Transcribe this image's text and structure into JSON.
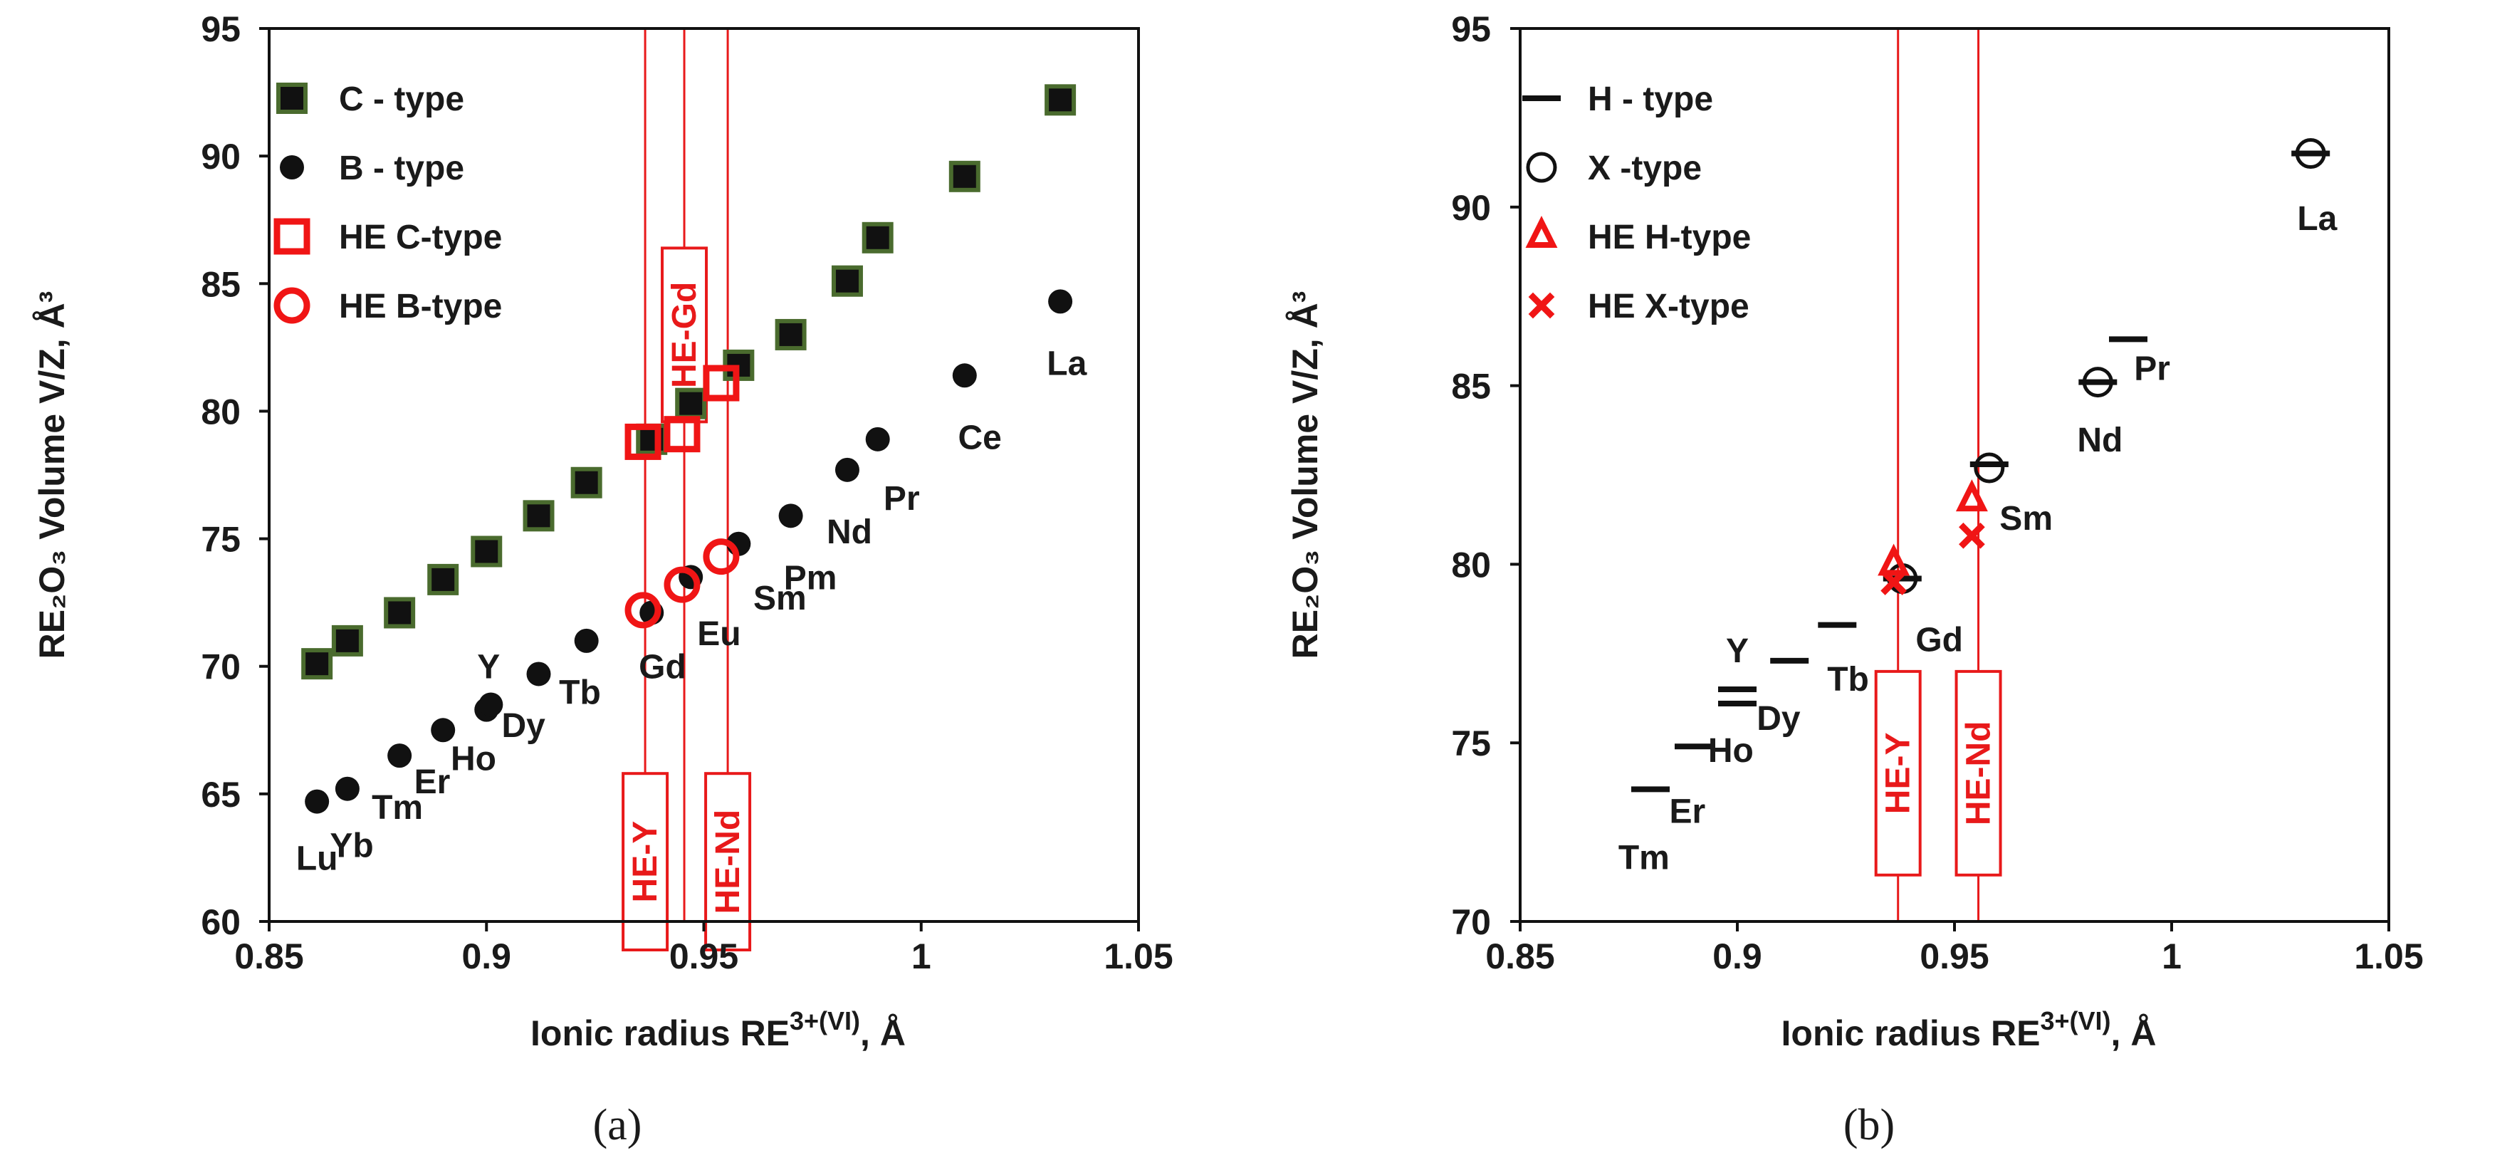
{
  "colors": {
    "c_type_fill": "#111111",
    "c_type_edge": "#4a6b2e",
    "b_type": "#111111",
    "he": "#f01515",
    "ref_line": "#e8191a"
  },
  "chart_data": [
    {
      "type": "scatter",
      "panel_label": "(a)",
      "xlabel": "Ionic radius RE",
      "xlabel_sup": "3+(VI)",
      "xlabel_unit": ", Å",
      "ylabel": "RE₂O₃ Volume V/Z, Å³",
      "xlim": [
        0.85,
        1.05
      ],
      "ylim": [
        60,
        95
      ],
      "xticks": [
        0.85,
        0.9,
        0.95,
        1,
        1.05
      ],
      "xtick_labels": [
        "0.85",
        "0.9",
        "0.95",
        "1",
        "1.05"
      ],
      "yticks": [
        60,
        65,
        70,
        75,
        80,
        85,
        90,
        95
      ],
      "legend": [
        "C - type",
        "B - type",
        "HE C-type",
        "HE B-type"
      ],
      "series": [
        {
          "name": "C - type",
          "marker": "square",
          "points": [
            [
              0.861,
              70.1
            ],
            [
              0.868,
              71.0
            ],
            [
              0.88,
              72.1
            ],
            [
              0.89,
              73.4
            ],
            [
              0.9,
              74.5
            ],
            [
              0.912,
              75.9
            ],
            [
              0.923,
              77.2
            ],
            [
              0.938,
              78.9
            ],
            [
              0.947,
              80.3
            ],
            [
              0.958,
              81.8
            ],
            [
              0.97,
              83.0
            ],
            [
              0.983,
              85.1
            ],
            [
              0.99,
              86.8
            ],
            [
              1.01,
              89.2
            ],
            [
              1.032,
              92.2
            ]
          ]
        },
        {
          "name": "B - type",
          "marker": "circle",
          "points": [
            [
              0.861,
              64.7
            ],
            [
              0.868,
              65.2
            ],
            [
              0.88,
              66.5
            ],
            [
              0.89,
              67.5
            ],
            [
              0.9,
              68.3
            ],
            [
              0.901,
              68.5
            ],
            [
              0.912,
              69.7
            ],
            [
              0.923,
              71.0
            ],
            [
              0.938,
              72.1
            ],
            [
              0.947,
              73.5
            ],
            [
              0.958,
              74.8
            ],
            [
              0.97,
              75.9
            ],
            [
              0.983,
              77.7
            ],
            [
              0.99,
              78.9
            ],
            [
              1.01,
              81.4
            ],
            [
              1.032,
              84.3
            ]
          ]
        },
        {
          "name": "HE C-type",
          "marker": "open-square",
          "points": [
            [
              0.936,
              78.8
            ],
            [
              0.945,
              79.1
            ],
            [
              0.954,
              81.1
            ]
          ]
        },
        {
          "name": "HE B-type",
          "marker": "open-circle",
          "points": [
            [
              0.936,
              72.2
            ],
            [
              0.945,
              73.2
            ],
            [
              0.954,
              74.3
            ]
          ]
        }
      ],
      "element_labels": [
        {
          "text": "Lu",
          "x": 0.861,
          "y": 62.5
        },
        {
          "text": "Yb",
          "x": 0.869,
          "y": 63.0
        },
        {
          "text": "Tm",
          "x": 0.8795,
          "y": 64.5
        },
        {
          "text": "Er",
          "x": 0.8875,
          "y": 65.5
        },
        {
          "text": "Ho",
          "x": 0.897,
          "y": 66.4
        },
        {
          "text": "Y",
          "x": 0.9005,
          "y": 70.0
        },
        {
          "text": "Dy",
          "x": 0.9085,
          "y": 67.7
        },
        {
          "text": "Tb",
          "x": 0.9215,
          "y": 69.0
        },
        {
          "text": "Gd",
          "x": 0.9405,
          "y": 70.0
        },
        {
          "text": "Eu",
          "x": 0.9535,
          "y": 71.3
        },
        {
          "text": "Sm",
          "x": 0.9675,
          "y": 72.7
        },
        {
          "text": "Pm",
          "x": 0.9745,
          "y": 73.5
        },
        {
          "text": "Nd",
          "x": 0.9835,
          "y": 75.3
        },
        {
          "text": "Pr",
          "x": 0.9955,
          "y": 76.6
        },
        {
          "text": "Ce",
          "x": 1.0135,
          "y": 79.0
        },
        {
          "text": "La",
          "x": 1.0335,
          "y": 81.9
        }
      ],
      "reference_lines": [
        {
          "label": "HE-Y",
          "x": 0.9365,
          "box_y": [
            57.6,
            65.8
          ]
        },
        {
          "label": "HE-Gd",
          "x": 0.9455,
          "box_y": 83.1
        },
        {
          "label": "HE-Nd",
          "x": 0.9555,
          "box_y": [
            57.6,
            65.8
          ]
        }
      ]
    },
    {
      "type": "scatter",
      "panel_label": "(b)",
      "xlabel": "Ionic radius RE",
      "xlabel_sup": "3+(VI)",
      "xlabel_unit": ", Å",
      "ylabel": "RE₂O₃ Volume V/Z, Å³",
      "xlim": [
        0.85,
        1.05
      ],
      "ylim": [
        70,
        95
      ],
      "xticks": [
        0.85,
        0.9,
        0.95,
        1,
        1.05
      ],
      "xtick_labels": [
        "0.85",
        "0.9",
        "0.95",
        "1",
        "1.05"
      ],
      "yticks": [
        70,
        75,
        80,
        85,
        90,
        95
      ],
      "legend": [
        "H - type",
        "X -type",
        "HE H-type",
        "HE X-type"
      ],
      "series": [
        {
          "name": "H - type",
          "marker": "dash",
          "points": [
            [
              0.88,
              73.7
            ],
            [
              0.89,
              74.9
            ],
            [
              0.9,
              76.1
            ],
            [
              0.9,
              76.5
            ],
            [
              0.912,
              77.3
            ],
            [
              0.923,
              78.3
            ],
            [
              0.938,
              79.6
            ],
            [
              0.958,
              82.8
            ],
            [
              0.983,
              85.1
            ],
            [
              0.99,
              86.3
            ],
            [
              1.032,
              91.5
            ]
          ]
        },
        {
          "name": "X -type",
          "marker": "open-circle",
          "points": [
            [
              0.938,
              79.6
            ],
            [
              0.958,
              82.7
            ],
            [
              0.983,
              85.1
            ],
            [
              1.032,
              91.5
            ]
          ]
        },
        {
          "name": "HE H-type",
          "marker": "open-triangle",
          "points": [
            [
              0.936,
              80.0
            ],
            [
              0.954,
              81.8
            ]
          ]
        },
        {
          "name": "HE X-type",
          "marker": "x",
          "points": [
            [
              0.936,
              79.5
            ],
            [
              0.954,
              80.8
            ]
          ]
        }
      ],
      "element_labels": [
        {
          "text": "Tm",
          "x": 0.8785,
          "y": 71.8
        },
        {
          "text": "Er",
          "x": 0.8885,
          "y": 73.1
        },
        {
          "text": "Ho",
          "x": 0.8985,
          "y": 74.8
        },
        {
          "text": "Y",
          "x": 0.9,
          "y": 77.6
        },
        {
          "text": "Dy",
          "x": 0.9095,
          "y": 75.7
        },
        {
          "text": "Tb",
          "x": 0.9255,
          "y": 76.8
        },
        {
          "text": "Gd",
          "x": 0.9465,
          "y": 77.9
        },
        {
          "text": "Sm",
          "x": 0.9665,
          "y": 81.3
        },
        {
          "text": "Nd",
          "x": 0.9835,
          "y": 83.5
        },
        {
          "text": "Pr",
          "x": 0.9955,
          "y": 85.5
        },
        {
          "text": "La",
          "x": 1.0335,
          "y": 89.7
        }
      ],
      "reference_lines": [
        {
          "label": "HE-Y",
          "x": 0.937,
          "box_y": [
            71.3,
            77.0
          ]
        },
        {
          "label": "HE-Nd",
          "x": 0.9555,
          "box_y": [
            71.3,
            77.0
          ]
        }
      ]
    }
  ]
}
